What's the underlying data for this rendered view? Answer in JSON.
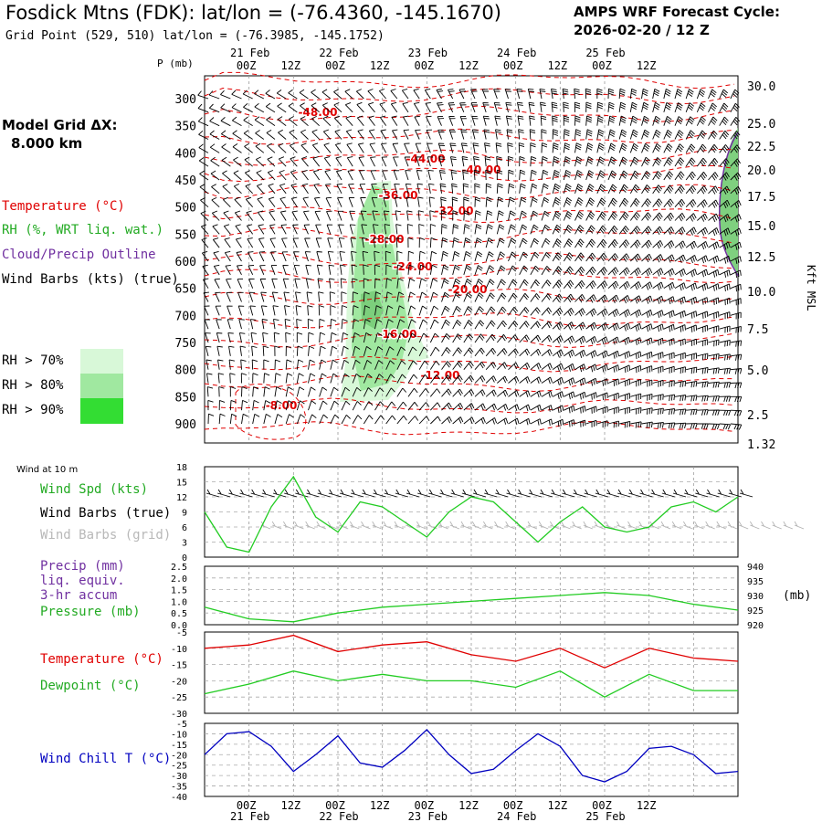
{
  "header": {
    "title": "Fosdick Mtns (FDK):  lat/lon = (-76.4360, -145.1670)",
    "subtitle": "Grid Point (529, 510) lat/lon = (-76.3985, -145.1752)",
    "cycle_line1": "AMPS WRF Forecast Cycle:",
    "cycle_line2": "2026-02-20 / 12  Z"
  },
  "sidebar": {
    "model_grid_label": "Model Grid ΔX:",
    "model_grid_value": "8.000 km",
    "legend_temperature": "Temperature (°C)",
    "legend_rh": "RH (%, WRT liq. wat.)",
    "legend_cloud": "Cloud/Precip Outline",
    "legend_wind": "Wind Barbs (kts) (true)",
    "rh70": "RH > 70%",
    "rh80": "RH > 80%",
    "rh90": "RH > 90%",
    "wind10m": "Wind at 10 m",
    "wind_spd": "Wind Spd (kts)",
    "wind_barbs_true": "Wind Barbs (true)",
    "wind_barbs_grid": "Wind Barbs (grid)",
    "precip_1": "Precip (mm)",
    "precip_2": "liq. equiv.",
    "precip_3": "3-hr accum",
    "pressure": "Pressure (mb)",
    "temperature": "Temperature (°C)",
    "dewpoint": "Dewpoint (°C)",
    "windchill": "Wind Chill T (°C)"
  },
  "colors": {
    "temperature": "#e00000",
    "rh": "#22cc22",
    "cloud": "#7030a0",
    "rh70": "#d8f8d8",
    "rh80": "#a0e8a0",
    "rh90": "#33dd33",
    "wind": "#000000",
    "wind_grid": "#b0b0b0",
    "windchill": "#0000c0",
    "pressure": "#22cc22",
    "dewpoint": "#22cc22"
  },
  "chart_data": [
    {
      "type": "time-height cross-section",
      "ylabel": "P (mb)",
      "ylabel_right": "Kft MSL",
      "time_ticks": [
        "00Z",
        "12Z",
        "00Z",
        "12Z",
        "00Z",
        "12Z",
        "00Z",
        "12Z",
        "00Z",
        "12Z"
      ],
      "date_labels": [
        "21 Feb",
        "22 Feb",
        "23 Feb",
        "24 Feb",
        "25 Feb"
      ],
      "pressure_ticks": [
        300,
        350,
        400,
        450,
        500,
        550,
        600,
        650,
        700,
        750,
        800,
        850,
        900
      ],
      "kft_ticks": [
        "30.0",
        "25.0",
        "22.5",
        "20.0",
        "17.5",
        "15.0",
        "12.5",
        "10.0",
        "7.5",
        "5.0",
        "2.5",
        "1.32"
      ],
      "temperature_labels": [
        "-48.00",
        "-44.00",
        "-40.00",
        "-36.00",
        "-32.00",
        "-28.00",
        "-24.00",
        "-20.00",
        "-16.00",
        "-12.00",
        "-8.00"
      ]
    },
    {
      "type": "line",
      "panel": "wind",
      "yticks": [
        0,
        3,
        6,
        9,
        12,
        15,
        18
      ],
      "ylim": [
        0,
        18
      ],
      "series": [
        {
          "name": "Wind Spd (kts)",
          "x_hours": [
            0,
            6,
            12,
            18,
            24,
            30,
            36,
            42,
            48,
            54,
            60,
            66,
            72,
            78,
            84,
            90,
            96,
            102,
            108,
            114,
            120,
            126,
            132,
            138,
            144
          ],
          "values": [
            9,
            2,
            1,
            10,
            16,
            8,
            5,
            11,
            10,
            7,
            4,
            9,
            12,
            11,
            7,
            3,
            7,
            10,
            6,
            5,
            6,
            10,
            11,
            9,
            12
          ]
        }
      ]
    },
    {
      "type": "line",
      "panel": "precip-pressure",
      "yticks_left": [
        "0.0",
        "0.5",
        "1.0",
        "1.5",
        "2.0",
        "2.5"
      ],
      "yticks_right": [
        920,
        925,
        930,
        935,
        940
      ],
      "ylim_right": [
        920,
        940
      ],
      "series": [
        {
          "name": "Pressure (mb)",
          "x_hours": [
            0,
            12,
            24,
            36,
            48,
            60,
            72,
            84,
            96,
            108,
            120,
            132,
            144
          ],
          "values": [
            926,
            922,
            921,
            924,
            926,
            927,
            928,
            929,
            930,
            931,
            930,
            927,
            925
          ]
        }
      ]
    },
    {
      "type": "line",
      "panel": "temperature",
      "yticks": [
        -5,
        -10,
        -15,
        -20,
        -25,
        -30
      ],
      "ylim": [
        -30,
        -5
      ],
      "series": [
        {
          "name": "Temperature (°C)",
          "x_hours": [
            0,
            12,
            24,
            36,
            48,
            60,
            72,
            84,
            96,
            108,
            120,
            132,
            144
          ],
          "values": [
            -10,
            -9,
            -6,
            -11,
            -9,
            -8,
            -12,
            -14,
            -10,
            -16,
            -10,
            -13,
            -14
          ]
        },
        {
          "name": "Dewpoint (°C)",
          "x_hours": [
            0,
            12,
            24,
            36,
            48,
            60,
            72,
            84,
            96,
            108,
            120,
            132,
            144
          ],
          "values": [
            -24,
            -21,
            -17,
            -20,
            -18,
            -20,
            -20,
            -22,
            -17,
            -25,
            -18,
            -23,
            -23
          ]
        }
      ]
    },
    {
      "type": "line",
      "panel": "windchill",
      "yticks": [
        -10,
        -15,
        -20,
        -25,
        -30,
        -35,
        -40
      ],
      "ylim": [
        -40,
        -5
      ],
      "series": [
        {
          "name": "Wind Chill T (°C)",
          "x_hours": [
            0,
            6,
            12,
            18,
            24,
            30,
            36,
            42,
            48,
            54,
            60,
            66,
            72,
            78,
            84,
            90,
            96,
            102,
            108,
            114,
            120,
            126,
            132,
            138,
            144
          ],
          "values": [
            -20,
            -10,
            -9,
            -16,
            -28,
            -20,
            -11,
            -24,
            -26,
            -18,
            -8,
            -20,
            -29,
            -27,
            -18,
            -10,
            -16,
            -30,
            -33,
            -28,
            -17,
            -16,
            -20,
            -29,
            -28
          ]
        }
      ]
    }
  ]
}
